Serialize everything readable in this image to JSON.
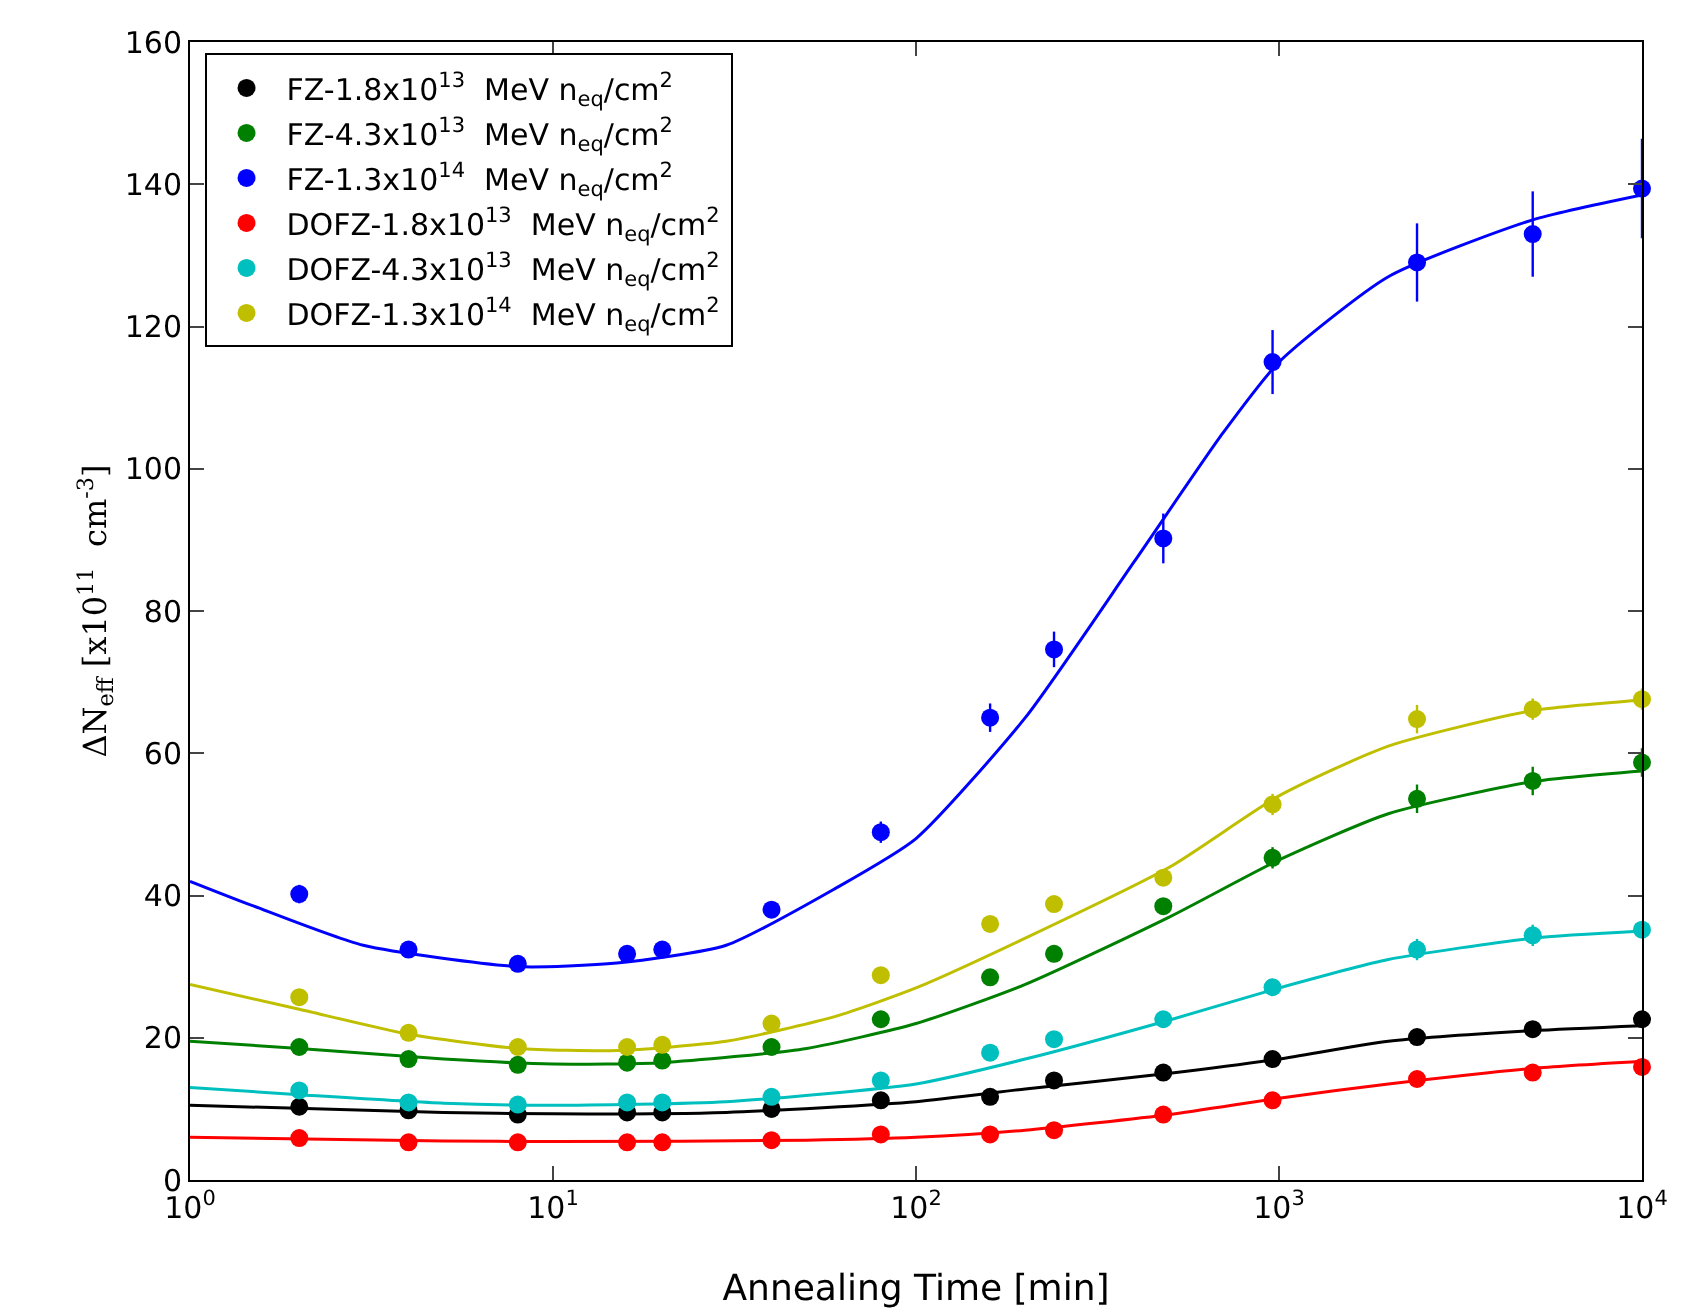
{
  "chart_data": {
    "type": "scatter",
    "xlabel": "Annealing Time [min]",
    "ylabel": "ΔN$_{eff}$ [x10$^{11}$  cm$^{-3}$]",
    "log": "x",
    "xlim": [
      1,
      10000
    ],
    "xticks": [
      {
        "value": 1,
        "label": "10$^{0}$"
      },
      {
        "value": 10,
        "label": "10$^{1}$"
      },
      {
        "value": 100,
        "label": "10$^{2}$"
      },
      {
        "value": 1000,
        "label": "10$^{3}$"
      },
      {
        "value": 10000,
        "label": "10$^{4}$"
      }
    ],
    "ylim": [
      0,
      160
    ],
    "yticks": [
      0,
      20,
      40,
      60,
      80,
      100,
      120,
      140,
      160
    ],
    "grid": false,
    "legend": "top left",
    "marker": "circle",
    "x": [
      2,
      4,
      8,
      16,
      20,
      40,
      80,
      160,
      240,
      480,
      960,
      2400,
      5000,
      10000
    ],
    "series": [
      {
        "name": "FZ-1.8x10$^{13}$  MeV n$_{eq}$/cm$^{2}$",
        "color": "#000000",
        "values": [
          10.3,
          9.8,
          9.2,
          9.5,
          9.5,
          10,
          11.2,
          11.7,
          14,
          15.1,
          17,
          20.1,
          21.2,
          22.6
        ],
        "errors": [
          1,
          1,
          1,
          1,
          1,
          1,
          1,
          1,
          1,
          1,
          1,
          1,
          1,
          1
        ]
      },
      {
        "name": "FZ-4.3x10$^{13}$  MeV n$_{eq}$/cm$^{2}$",
        "color": "#008000",
        "values": [
          18.7,
          17,
          16.2,
          16.5,
          16.8,
          18.7,
          22.6,
          28.5,
          31.8,
          38.5,
          45.3,
          53.6,
          56.1,
          58.7
        ],
        "errors": [
          1,
          1,
          1,
          1,
          1,
          1,
          1,
          1,
          1,
          1,
          1.5,
          2,
          2,
          2
        ]
      },
      {
        "name": "FZ-1.3x10$^{14}$  MeV n$_{eq}$/cm$^{2}$",
        "color": "#0000ff",
        "values": [
          40.2,
          32.4,
          30.4,
          31.8,
          32.4,
          38,
          48.9,
          65,
          74.6,
          90.2,
          115,
          129,
          133,
          139.4
        ],
        "errors": [
          1.3,
          1,
          1,
          1,
          1,
          1,
          1.5,
          2,
          2.5,
          3.5,
          4.5,
          5.5,
          6,
          7
        ]
      },
      {
        "name": "DOFZ-1.8x10$^{13}$  MeV n$_{eq}$/cm$^{2}$",
        "color": "#ff0000",
        "values": [
          5.9,
          5.3,
          5.3,
          5.3,
          5.3,
          5.6,
          6.4,
          6.4,
          7,
          9.2,
          11.2,
          14.2,
          15.1,
          15.9
        ],
        "errors": [
          1,
          1,
          1,
          1,
          1,
          1,
          1,
          1,
          1,
          1,
          1,
          1,
          1,
          1
        ]
      },
      {
        "name": "DOFZ-4.3x10$^{13}$  MeV n$_{eq}$/cm$^{2}$",
        "color": "#00bfbf",
        "values": [
          12.6,
          10.9,
          10.6,
          10.9,
          10.9,
          11.7,
          14,
          17.9,
          19.8,
          22.6,
          27.1,
          32.4,
          34.4,
          35.2
        ],
        "errors": [
          1,
          1,
          1,
          1,
          1,
          1,
          1,
          1,
          1,
          1,
          1,
          1.5,
          1.5,
          1
        ]
      },
      {
        "name": "DOFZ-1.3x10$^{14}$  MeV n$_{eq}$/cm$^{2}$",
        "color": "#bfbf00",
        "values": [
          25.7,
          20.7,
          18.7,
          18.7,
          19,
          22,
          28.8,
          36,
          38.8,
          42.5,
          52.8,
          64.8,
          66.2,
          67.6
        ],
        "errors": [
          1,
          1,
          1,
          1,
          1,
          1,
          1,
          1,
          1,
          1,
          1.5,
          2,
          1.5,
          1.5
        ]
      },
      {
        "type": "line",
        "marker": "none",
        "color": "#000000",
        "x": [
          1,
          5,
          10,
          30,
          100,
          200,
          500,
          1000,
          2000,
          5000,
          10000
        ],
        "values": [
          10.5,
          9.5,
          9.3,
          9.5,
          11,
          12.8,
          15,
          17,
          19.5,
          21,
          21.7
        ]
      },
      {
        "type": "line",
        "marker": "none",
        "color": "#008000",
        "x": [
          1,
          2,
          5,
          10,
          20,
          50,
          100,
          200,
          500,
          1000,
          2000,
          5000,
          10000
        ],
        "values": [
          19.5,
          18.5,
          17,
          16.3,
          16.5,
          18.5,
          22,
          27.5,
          37,
          45,
          51.5,
          56,
          57.5
        ]
      },
      {
        "type": "line",
        "marker": "none",
        "color": "#0000ff",
        "x": [
          1,
          1.5,
          3,
          8,
          15,
          30,
          60,
          100,
          200,
          400,
          700,
          1000,
          2000,
          5000,
          10000
        ],
        "values": [
          42,
          38.5,
          33,
          30,
          30.5,
          33,
          41,
          48,
          65,
          87,
          105,
          115,
          127,
          135,
          138.5
        ]
      },
      {
        "type": "line",
        "marker": "none",
        "color": "#ff0000",
        "x": [
          1,
          5,
          10,
          50,
          100,
          200,
          500,
          1000,
          2000,
          5000,
          10000
        ],
        "values": [
          6,
          5.5,
          5.4,
          5.6,
          6,
          7,
          9.2,
          11.5,
          13.5,
          15.7,
          16.7
        ]
      },
      {
        "type": "line",
        "marker": "none",
        "color": "#00bfbf",
        "x": [
          1,
          2,
          5,
          10,
          30,
          100,
          200,
          500,
          1000,
          2000,
          5000,
          10000
        ],
        "values": [
          13,
          12,
          10.8,
          10.5,
          11,
          13.5,
          17,
          22.5,
          27,
          31,
          34,
          35
        ]
      },
      {
        "type": "line",
        "marker": "none",
        "color": "#bfbf00",
        "x": [
          1,
          2,
          4,
          8,
          15,
          30,
          60,
          100,
          200,
          500,
          1000,
          2000,
          5000,
          10000
        ],
        "values": [
          27.5,
          24,
          20.5,
          18.5,
          18.2,
          19.5,
          23,
          27,
          34,
          44,
          54,
          61,
          66,
          67.5
        ]
      }
    ]
  }
}
